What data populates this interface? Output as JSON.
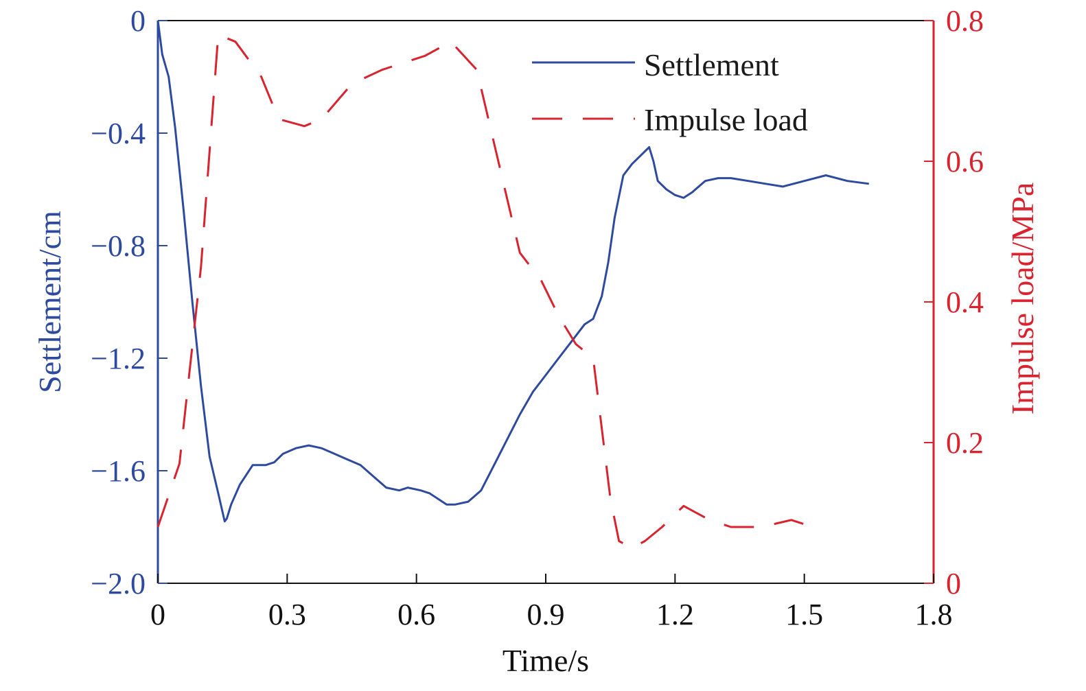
{
  "colors": {
    "settlement": "#2e4a9e",
    "impulse": "#d9232e",
    "frame": "#111111"
  },
  "chart_data": {
    "type": "line",
    "xlabel": "Time/s",
    "ylabel_left": "Settlement/cm",
    "ylabel_right": "Impulse load/MPa",
    "xlim": [
      0,
      1.8
    ],
    "ylim_left": [
      -2.0,
      0
    ],
    "ylim_right": [
      0,
      0.8
    ],
    "x_ticks": [
      "0",
      "0.3",
      "0.6",
      "0.9",
      "1.2",
      "1.5",
      "1.8"
    ],
    "y_left_ticks": [
      "0",
      "−0.4",
      "−0.8",
      "−1.2",
      "−1.6",
      "−2.0"
    ],
    "y_right_ticks": [
      "0.8",
      "0.6",
      "0.4",
      "0.2",
      "0"
    ],
    "legend_position": "top-right",
    "grid": false,
    "series": [
      {
        "name": "Settlement",
        "axis": "left",
        "style": "solid",
        "x": [
          0,
          0.01,
          0.025,
          0.04,
          0.06,
          0.08,
          0.1,
          0.12,
          0.14,
          0.155,
          0.16,
          0.17,
          0.19,
          0.22,
          0.25,
          0.27,
          0.29,
          0.32,
          0.35,
          0.38,
          0.41,
          0.44,
          0.47,
          0.5,
          0.53,
          0.56,
          0.58,
          0.61,
          0.63,
          0.65,
          0.67,
          0.69,
          0.72,
          0.75,
          0.78,
          0.81,
          0.84,
          0.87,
          0.9,
          0.93,
          0.96,
          0.99,
          1.01,
          1.03,
          1.045,
          1.06,
          1.08,
          1.1,
          1.12,
          1.14,
          1.15,
          1.16,
          1.18,
          1.2,
          1.22,
          1.24,
          1.27,
          1.3,
          1.33,
          1.37,
          1.41,
          1.45,
          1.5,
          1.55,
          1.6,
          1.65
        ],
        "y": [
          0,
          -0.12,
          -0.2,
          -0.38,
          -0.68,
          -1.0,
          -1.3,
          -1.55,
          -1.68,
          -1.78,
          -1.77,
          -1.72,
          -1.65,
          -1.58,
          -1.58,
          -1.57,
          -1.54,
          -1.52,
          -1.51,
          -1.52,
          -1.54,
          -1.56,
          -1.58,
          -1.62,
          -1.66,
          -1.67,
          -1.66,
          -1.67,
          -1.68,
          -1.7,
          -1.72,
          -1.72,
          -1.71,
          -1.67,
          -1.58,
          -1.49,
          -1.4,
          -1.32,
          -1.26,
          -1.2,
          -1.14,
          -1.08,
          -1.06,
          -0.98,
          -0.86,
          -0.7,
          -0.55,
          -0.51,
          -0.48,
          -0.45,
          -0.5,
          -0.57,
          -0.6,
          -0.62,
          -0.63,
          -0.61,
          -0.57,
          -0.56,
          -0.56,
          -0.57,
          -0.58,
          -0.59,
          -0.57,
          -0.55,
          -0.57,
          -0.58
        ]
      },
      {
        "name": "Impulse load",
        "axis": "right",
        "style": "dashed",
        "x": [
          0,
          0.05,
          0.1,
          0.14,
          0.18,
          0.24,
          0.28,
          0.34,
          0.38,
          0.45,
          0.52,
          0.57,
          0.62,
          0.65,
          0.68,
          0.74,
          0.79,
          0.84,
          0.89,
          0.93,
          0.97,
          1.01,
          1.05,
          1.07,
          1.1,
          1.13,
          1.17,
          1.22,
          1.28,
          1.33,
          1.4,
          1.47,
          1.52
        ],
        "y": [
          0.08,
          0.17,
          0.45,
          0.78,
          0.77,
          0.72,
          0.66,
          0.65,
          0.66,
          0.71,
          0.73,
          0.74,
          0.75,
          0.76,
          0.77,
          0.73,
          0.6,
          0.47,
          0.43,
          0.38,
          0.34,
          0.32,
          0.12,
          0.06,
          0.05,
          0.06,
          0.08,
          0.11,
          0.09,
          0.08,
          0.08,
          0.09,
          0.08
        ]
      }
    ]
  }
}
